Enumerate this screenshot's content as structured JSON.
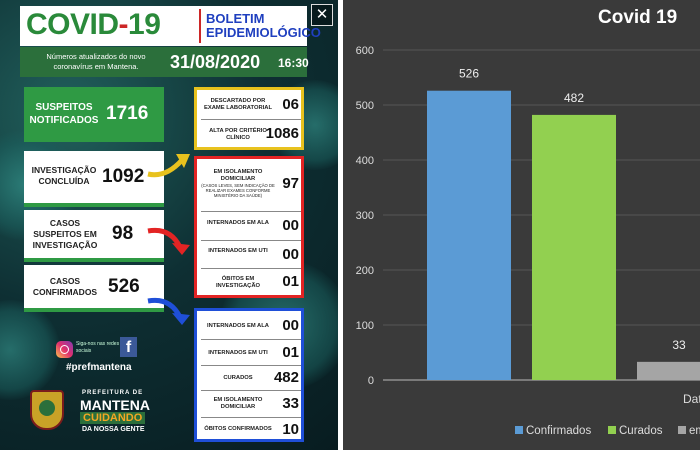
{
  "bulletin": {
    "header": {
      "covid": "COVID",
      "dash": "-",
      "number": "19",
      "title_line1": "BOLETIM",
      "title_line2": "EPIDEMIOLÓGICO"
    },
    "subheader": {
      "note": "Números atualizados do novo coronavírus em Mantena.",
      "date": "31/08/2020",
      "time": "16:30"
    },
    "close_glyph": "✕",
    "left": {
      "suspected": {
        "label": "SUSPEITOS NOTIFICADOS",
        "value": "1716"
      },
      "investigation": {
        "label": "INVESTIGAÇÃO CONCLUÍDA",
        "value": "1092"
      },
      "suspected_investigation": {
        "label": "CASOS SUSPEITOS EM INVESTIGAÇÃO",
        "value": "98"
      },
      "confirmed": {
        "label": "CASOS CONFIRMADOS",
        "value": "526"
      }
    },
    "box_discarded": [
      {
        "label": "DESCARTADO POR EXAME LABORATORIAL",
        "value": "06"
      },
      {
        "label": "ALTA POR CRITÉRIO CLÍNICO",
        "value": "1086"
      }
    ],
    "box_suspected": [
      {
        "label": "EM ISOLAMENTO DOMICILIAR",
        "note": "(CASOS LEVES, SEM INDICAÇÃO DE REALIZAR EXAMES CONFORME MINISTÉRIO DA SAÚDE)",
        "value": "97"
      },
      {
        "label": "INTERNADOS EM ALA",
        "value": "00"
      },
      {
        "label": "INTERNADOS EM UTI",
        "value": "00"
      },
      {
        "label": "ÓBITOS EM INVESTIGAÇÃO",
        "value": "01"
      }
    ],
    "box_confirmed": [
      {
        "label": "INTERNADOS EM ALA",
        "value": "00"
      },
      {
        "label": "INTERNADOS EM UTI",
        "value": "01"
      },
      {
        "label": "CURADOS",
        "value": "482"
      },
      {
        "label": "EM ISOLAMENTO DOMICILIAR",
        "value": "33"
      },
      {
        "label": "ÓBITOS CONFIRMADOS",
        "value": "10"
      }
    ],
    "social": {
      "note": "Siga-nos nas redes sociais",
      "hashtag": "#prefmantena",
      "fb": "f"
    },
    "prefeitura": {
      "small": "PREFEITURA DE",
      "name": "MANTENA",
      "slogan": "CUIDANDO",
      "tagline": "DA NOSSA GENTE"
    },
    "colors": {
      "green": "#2f9a44",
      "yellow": "#e8c21e",
      "red": "#e32424",
      "blue": "#1f4fd8"
    }
  },
  "chart_data": {
    "type": "bar",
    "title": "Covid 19",
    "categories": [
      "Confirmados",
      "Curados",
      "em isolamento"
    ],
    "values": [
      526,
      482,
      33
    ],
    "ylim": [
      0,
      600
    ],
    "yticks": [
      0,
      100,
      200,
      300,
      400,
      500,
      600
    ],
    "xlabel": "Data",
    "legend": [
      {
        "label": "Confirmados",
        "color": "#5b9bd5"
      },
      {
        "label": "Curados",
        "color": "#92d050"
      },
      {
        "label": "em",
        "color": "#a5a5a5"
      }
    ],
    "legend_position": "bottom",
    "grid": true
  }
}
